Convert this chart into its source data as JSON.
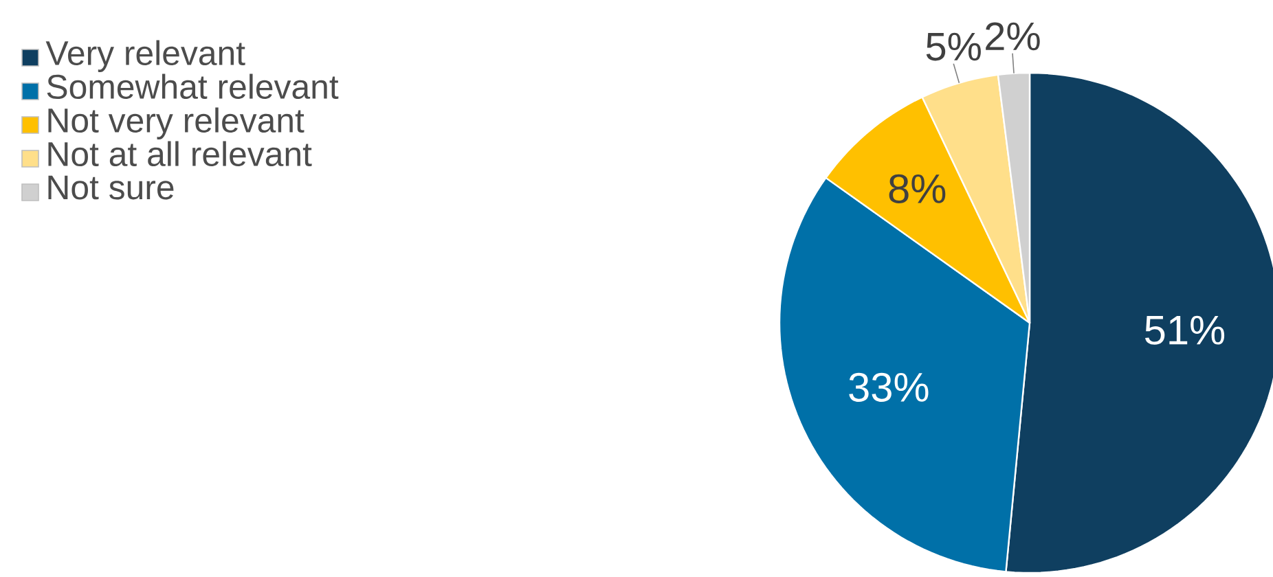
{
  "chart_data": {
    "type": "pie",
    "categories": [
      "Very relevant",
      "Somewhat relevant",
      "Not very relevant",
      "Not at all relevant",
      "Not sure"
    ],
    "values": [
      51,
      33,
      8,
      5,
      2
    ],
    "colors": [
      "#0f3f60",
      "#0070a8",
      "#ffc000",
      "#ffdf8a",
      "#d0d0d0"
    ],
    "value_labels": [
      "51%",
      "33%",
      "8%",
      "5%",
      "2%"
    ],
    "legend": "top left"
  }
}
